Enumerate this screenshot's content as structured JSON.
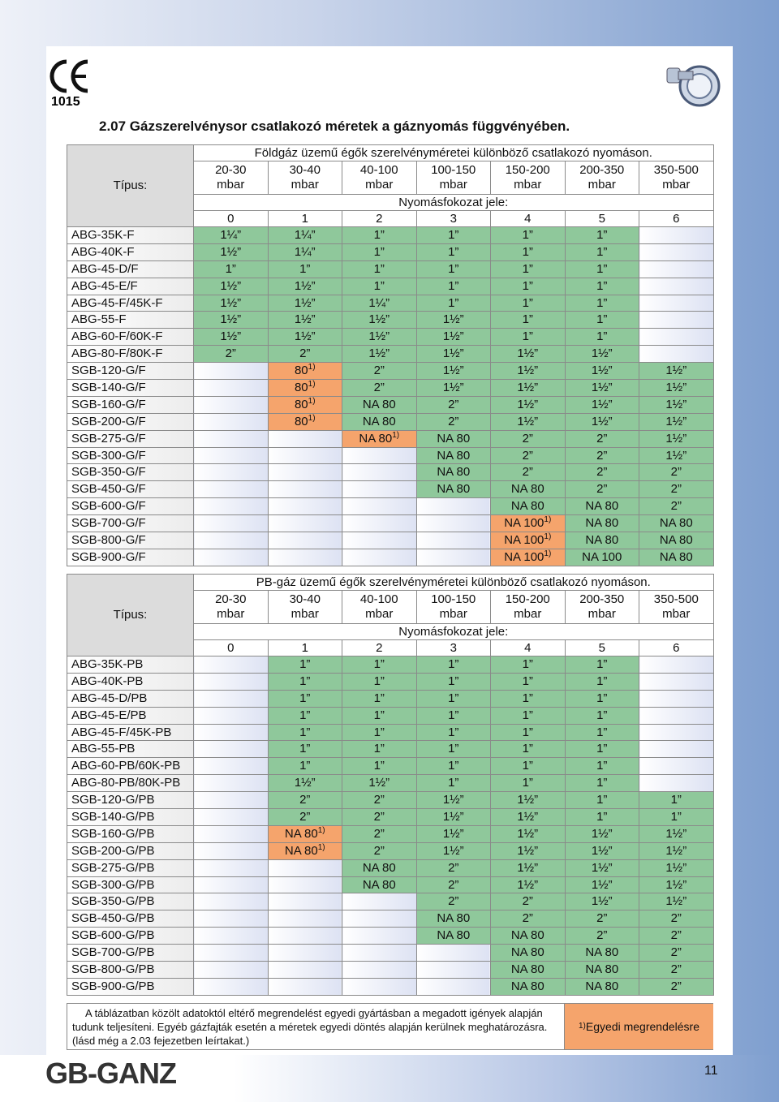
{
  "ce_number": "1015",
  "logo": "GB-GANZ",
  "page_number": "11",
  "title": "2.07 Gázszerelvénysor csatlakozó méretek a gáznyomás függvényében.",
  "tables": [
    {
      "type_label": "Típus:",
      "heading": "Földgáz üzemű égők szerelvényméretei különböző csatlakozó nyomáson.",
      "pressures": [
        {
          "range": "20-30",
          "unit": "mbar"
        },
        {
          "range": "30-40",
          "unit": "mbar"
        },
        {
          "range": "40-100",
          "unit": "mbar"
        },
        {
          "range": "100-150",
          "unit": "mbar"
        },
        {
          "range": "150-200",
          "unit": "mbar"
        },
        {
          "range": "200-350",
          "unit": "mbar"
        },
        {
          "range": "350-500",
          "unit": "mbar"
        }
      ],
      "stage_label": "Nyomásfokozat jele:",
      "stages": [
        0,
        1,
        2,
        3,
        4,
        5,
        6
      ],
      "rows": [
        {
          "name": "ABG-35K-F",
          "cells": [
            "1¼”",
            "1¼”",
            "1”",
            "1”",
            "1”",
            "1”",
            null
          ]
        },
        {
          "name": "ABG-40K-F",
          "cells": [
            "1½”",
            "1¼”",
            "1”",
            "1”",
            "1”",
            "1”",
            null
          ]
        },
        {
          "name": "ABG-45-D/F",
          "cells": [
            "1”",
            "1”",
            "1”",
            "1”",
            "1”",
            "1”",
            null
          ]
        },
        {
          "name": "ABG-45-E/F",
          "cells": [
            "1½”",
            "1½”",
            "1”",
            "1”",
            "1”",
            "1”",
            null
          ]
        },
        {
          "name": "ABG-45-F/45K-F",
          "cells": [
            "1½”",
            "1½”",
            "1¼”",
            "1”",
            "1”",
            "1”",
            null
          ]
        },
        {
          "name": "ABG-55-F",
          "cells": [
            "1½”",
            "1½”",
            "1½”",
            "1½”",
            "1”",
            "1”",
            null
          ]
        },
        {
          "name": "ABG-60-F/60K-F",
          "cells": [
            "1½”",
            "1½”",
            "1½”",
            "1½”",
            "1”",
            "1”",
            null
          ]
        },
        {
          "name": "ABG-80-F/80K-F",
          "cells": [
            "2”",
            "2”",
            "1½”",
            "1½”",
            "1½”",
            "1½”",
            null
          ]
        },
        {
          "name": "SGB-120-G/F",
          "cells": [
            null,
            {
              "text": "80",
              "note": "1)"
            },
            "2”",
            "1½”",
            "1½”",
            "1½”",
            "1½”"
          ]
        },
        {
          "name": "SGB-140-G/F",
          "cells": [
            null,
            {
              "text": "80",
              "note": "1)"
            },
            "2”",
            "1½”",
            "1½”",
            "1½”",
            "1½”"
          ]
        },
        {
          "name": "SGB-160-G/F",
          "cells": [
            null,
            {
              "text": "80",
              "note": "1)"
            },
            "NA 80",
            "2”",
            "1½”",
            "1½”",
            "1½”"
          ]
        },
        {
          "name": "SGB-200-G/F",
          "cells": [
            null,
            {
              "text": "80",
              "note": "1)"
            },
            "NA 80",
            "2”",
            "1½”",
            "1½”",
            "1½”"
          ]
        },
        {
          "name": "SGB-275-G/F",
          "cells": [
            null,
            null,
            {
              "text": "NA 80",
              "note": "1)"
            },
            "NA 80",
            "2”",
            "2”",
            "1½”"
          ]
        },
        {
          "name": "SGB-300-G/F",
          "cells": [
            null,
            null,
            null,
            "NA 80",
            "2”",
            "2”",
            "1½”"
          ]
        },
        {
          "name": "SGB-350-G/F",
          "cells": [
            null,
            null,
            null,
            "NA 80",
            "2”",
            "2”",
            "2”"
          ]
        },
        {
          "name": "SGB-450-G/F",
          "cells": [
            null,
            null,
            null,
            "NA 80",
            "NA 80",
            "2”",
            "2”"
          ]
        },
        {
          "name": "SGB-600-G/F",
          "cells": [
            null,
            null,
            null,
            null,
            "NA 80",
            "NA 80",
            "2”"
          ]
        },
        {
          "name": "SGB-700-G/F",
          "cells": [
            null,
            null,
            null,
            null,
            {
              "text": "NA 100",
              "note": "1)"
            },
            "NA 80",
            "NA 80"
          ]
        },
        {
          "name": "SGB-800-G/F",
          "cells": [
            null,
            null,
            null,
            null,
            {
              "text": "NA 100",
              "note": "1)"
            },
            "NA 80",
            "NA 80"
          ]
        },
        {
          "name": "SGB-900-G/F",
          "cells": [
            null,
            null,
            null,
            null,
            {
              "text": "NA 100",
              "note": "1)"
            },
            "NA 100",
            "NA 80"
          ]
        }
      ]
    },
    {
      "type_label": "Típus:",
      "heading": "PB-gáz üzemű égők szerelvényméretei különböző csatlakozó nyomáson.",
      "pressures": [
        {
          "range": "20-30",
          "unit": "mbar"
        },
        {
          "range": "30-40",
          "unit": "mbar"
        },
        {
          "range": "40-100",
          "unit": "mbar"
        },
        {
          "range": "100-150",
          "unit": "mbar"
        },
        {
          "range": "150-200",
          "unit": "mbar"
        },
        {
          "range": "200-350",
          "unit": "mbar"
        },
        {
          "range": "350-500",
          "unit": "mbar"
        }
      ],
      "stage_label": "Nyomásfokozat jele:",
      "stages": [
        0,
        1,
        2,
        3,
        4,
        5,
        6
      ],
      "rows": [
        {
          "name": "ABG-35K-PB",
          "cells": [
            null,
            "1”",
            "1”",
            "1”",
            "1”",
            "1”",
            null
          ]
        },
        {
          "name": "ABG-40K-PB",
          "cells": [
            null,
            "1”",
            "1”",
            "1”",
            "1”",
            "1”",
            null
          ]
        },
        {
          "name": "ABG-45-D/PB",
          "cells": [
            null,
            "1”",
            "1”",
            "1”",
            "1”",
            "1”",
            null
          ]
        },
        {
          "name": "ABG-45-E/PB",
          "cells": [
            null,
            "1”",
            "1”",
            "1”",
            "1”",
            "1”",
            null
          ]
        },
        {
          "name": "ABG-45-F/45K-PB",
          "cells": [
            null,
            "1”",
            "1”",
            "1”",
            "1”",
            "1”",
            null
          ]
        },
        {
          "name": "ABG-55-PB",
          "cells": [
            null,
            "1”",
            "1”",
            "1”",
            "1”",
            "1”",
            null
          ]
        },
        {
          "name": "ABG-60-PB/60K-PB",
          "cells": [
            null,
            "1”",
            "1”",
            "1”",
            "1”",
            "1”",
            null
          ]
        },
        {
          "name": "ABG-80-PB/80K-PB",
          "cells": [
            null,
            "1½”",
            "1½”",
            "1”",
            "1”",
            "1”",
            null
          ]
        },
        {
          "name": "SGB-120-G/PB",
          "cells": [
            null,
            "2”",
            "2”",
            "1½”",
            "1½”",
            "1”",
            "1”"
          ]
        },
        {
          "name": "SGB-140-G/PB",
          "cells": [
            null,
            "2”",
            "2”",
            "1½”",
            "1½”",
            "1”",
            "1”"
          ]
        },
        {
          "name": "SGB-160-G/PB",
          "cells": [
            null,
            {
              "text": "NA 80",
              "note": "1)"
            },
            "2”",
            "1½”",
            "1½”",
            "1½”",
            "1½”"
          ]
        },
        {
          "name": "SGB-200-G/PB",
          "cells": [
            null,
            {
              "text": "NA 80",
              "note": "1)"
            },
            "2”",
            "1½”",
            "1½”",
            "1½”",
            "1½”"
          ]
        },
        {
          "name": "SGB-275-G/PB",
          "cells": [
            null,
            null,
            "NA 80",
            "2”",
            "1½”",
            "1½”",
            "1½”"
          ]
        },
        {
          "name": "SGB-300-G/PB",
          "cells": [
            null,
            null,
            "NA 80",
            "2”",
            "1½”",
            "1½”",
            "1½”"
          ]
        },
        {
          "name": "SGB-350-G/PB",
          "cells": [
            null,
            null,
            null,
            "2”",
            "2”",
            "1½”",
            "1½”"
          ]
        },
        {
          "name": "SGB-450-G/PB",
          "cells": [
            null,
            null,
            null,
            "NA 80",
            "2”",
            "2”",
            "2”"
          ]
        },
        {
          "name": "SGB-600-G/PB",
          "cells": [
            null,
            null,
            null,
            "NA 80",
            "NA 80",
            "2”",
            "2”"
          ]
        },
        {
          "name": "SGB-700-G/PB",
          "cells": [
            null,
            null,
            null,
            null,
            "NA 80",
            "NA 80",
            "2”"
          ]
        },
        {
          "name": "SGB-800-G/PB",
          "cells": [
            null,
            null,
            null,
            null,
            "NA 80",
            "NA 80",
            "2”"
          ]
        },
        {
          "name": "SGB-900-G/PB",
          "cells": [
            null,
            null,
            null,
            null,
            "NA 80",
            "NA 80",
            "2”"
          ]
        }
      ]
    }
  ],
  "footer": {
    "text": "A táblázatban közölt adatoktól eltérő megrendelést egyedi gyártásban a megadott igények alapján tudunk teljesíteni. Egyéb gázfajták esetén a méretek egyedi döntés alapján kerülnek meghatározásra. (lásd még a 2.03 fejezetben leírtakat.)",
    "note": "1)",
    "note_text": "Egyedi megrendelésre"
  }
}
